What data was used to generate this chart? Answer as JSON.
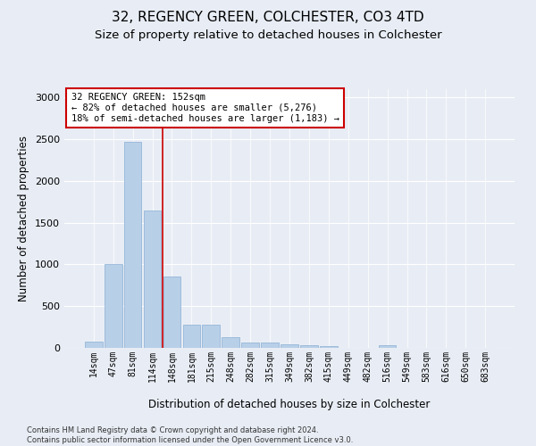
{
  "title1": "32, REGENCY GREEN, COLCHESTER, CO3 4TD",
  "title2": "Size of property relative to detached houses in Colchester",
  "xlabel": "Distribution of detached houses by size in Colchester",
  "ylabel": "Number of detached properties",
  "categories": [
    "14sqm",
    "47sqm",
    "81sqm",
    "114sqm",
    "148sqm",
    "181sqm",
    "215sqm",
    "248sqm",
    "282sqm",
    "315sqm",
    "349sqm",
    "382sqm",
    "415sqm",
    "449sqm",
    "482sqm",
    "516sqm",
    "549sqm",
    "583sqm",
    "616sqm",
    "650sqm",
    "683sqm"
  ],
  "values": [
    75,
    1000,
    2470,
    1650,
    850,
    280,
    280,
    130,
    60,
    60,
    40,
    35,
    25,
    0,
    0,
    30,
    0,
    0,
    0,
    0,
    0
  ],
  "bar_color": "#b8cfe8",
  "bar_edge_color": "#8aafd4",
  "vline_x_index": 3.5,
  "vline_color": "#cc0000",
  "annotation_text": "32 REGENCY GREEN: 152sqm\n← 82% of detached houses are smaller (5,276)\n18% of semi-detached houses are larger (1,183) →",
  "annotation_box_color": "#cc0000",
  "bg_color": "#e8edf5",
  "plot_bg_color": "#e8edf5",
  "ylim": [
    0,
    3100
  ],
  "yticks": [
    0,
    500,
    1000,
    1500,
    2000,
    2500,
    3000
  ],
  "footnote": "Contains HM Land Registry data © Crown copyright and database right 2024.\nContains public sector information licensed under the Open Government Licence v3.0.",
  "title1_fontsize": 11,
  "title2_fontsize": 9.5,
  "xlabel_fontsize": 8.5,
  "ylabel_fontsize": 8.5,
  "annot_fontsize": 7.5
}
